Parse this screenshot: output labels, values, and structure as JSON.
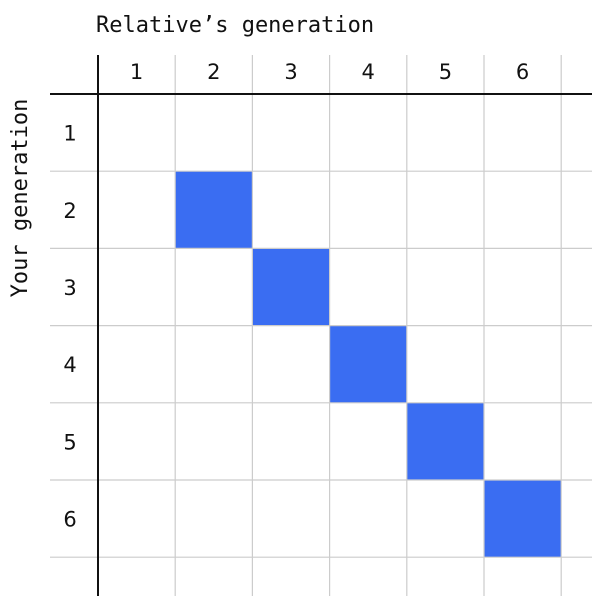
{
  "column_axis_title": "Relative’s generation",
  "row_axis_title": "Your generation",
  "column_labels": [
    "1",
    "2",
    "3",
    "4",
    "5",
    "6"
  ],
  "row_labels": [
    "1",
    "2",
    "3",
    "4",
    "5",
    "6"
  ],
  "highlighted_cells": [
    {
      "row": "2",
      "col": "2"
    },
    {
      "row": "3",
      "col": "3"
    },
    {
      "row": "4",
      "col": "4"
    },
    {
      "row": "5",
      "col": "5"
    },
    {
      "row": "6",
      "col": "6"
    }
  ],
  "colors": {
    "highlight": "#3a6df2",
    "grid": "#cccccc",
    "axis": "#111111",
    "text": "#111111"
  }
}
